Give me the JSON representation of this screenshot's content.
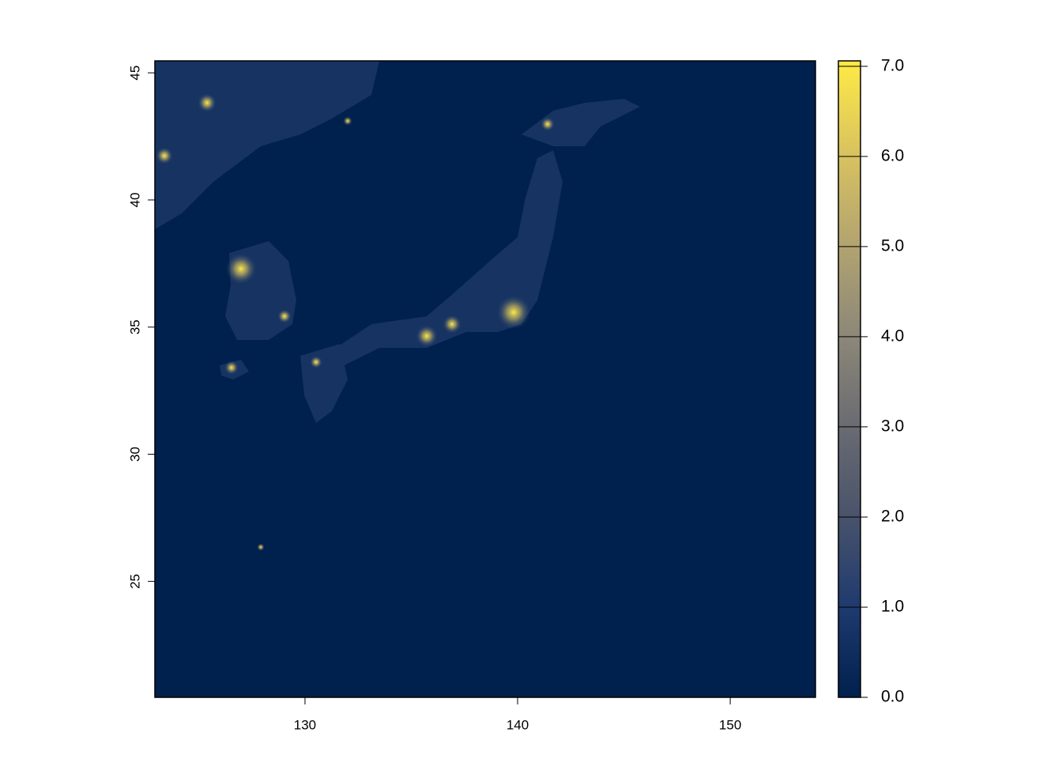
{
  "chart_data": {
    "type": "raster",
    "xlim": [
      122.94,
      154.01
    ],
    "ylim": [
      20.44,
      45.47
    ],
    "xticks": [
      130,
      140,
      150
    ],
    "yticks": [
      25,
      30,
      35,
      40,
      45
    ],
    "colorbar": {
      "lim": [
        0,
        7.06
      ],
      "ticks": [
        {
          "value": 0,
          "label": "0.0"
        },
        {
          "value": 1,
          "label": "1.0"
        },
        {
          "value": 2,
          "label": "2.0"
        },
        {
          "value": 3,
          "label": "3.0"
        },
        {
          "value": 4,
          "label": "4.0"
        },
        {
          "value": 5,
          "label": "5.0"
        },
        {
          "value": 6,
          "label": "6.0"
        },
        {
          "value": 7,
          "label": "7.0"
        }
      ],
      "colors": [
        "#00204d",
        "#1f3a6f",
        "#49536b",
        "#6b6c72",
        "#8d8878",
        "#b3a470",
        "#d9c35f",
        "#ffea46"
      ]
    }
  }
}
